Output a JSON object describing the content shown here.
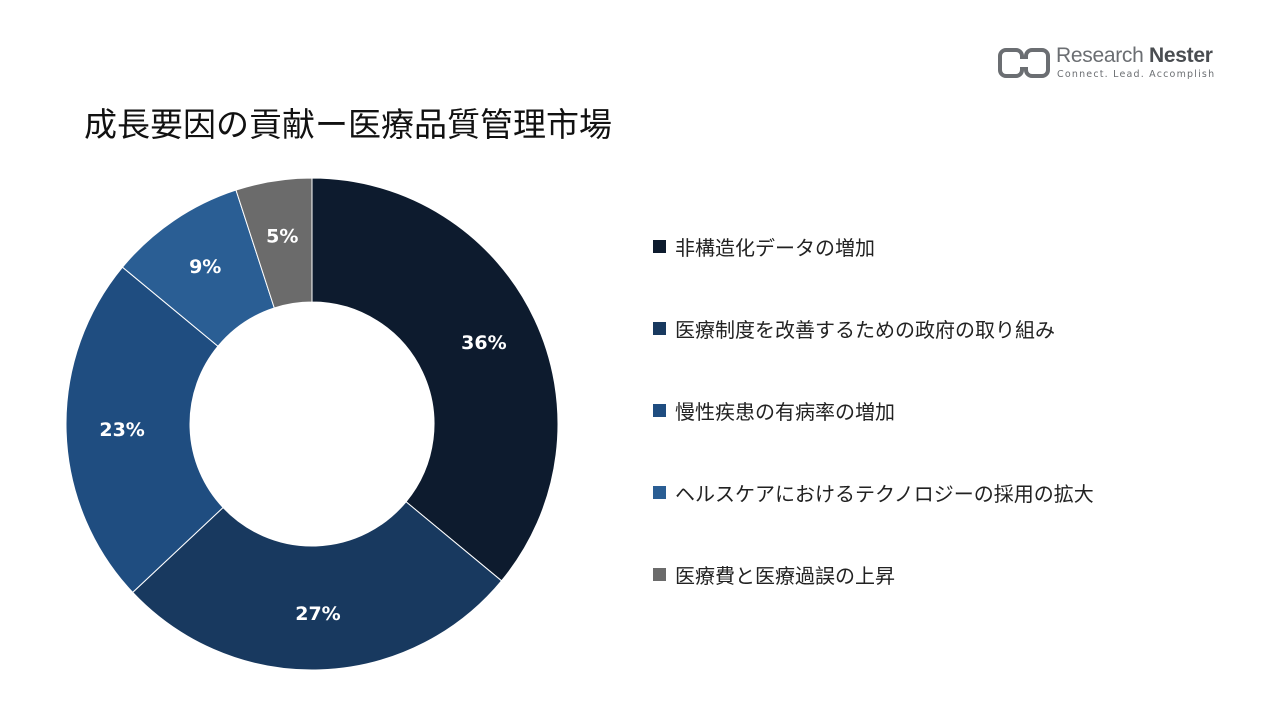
{
  "title": "成長要因の貢献ー医療品質管理市場",
  "logo": {
    "name_part1": "Research",
    "name_part2": "Nester",
    "tagline": "Connect. Lead. Accomplish",
    "icon": "research-nester-logo-icon"
  },
  "chart_data": {
    "type": "pie",
    "subtype": "donut",
    "categories": [
      "非構造化データの増加",
      "医療制度を改善するための政府の取り組み",
      "慢性疾患の有病率の増加",
      "ヘルスケアにおけるテクノロジーの採用の拡大",
      "医療費と医療過誤の上昇"
    ],
    "values": [
      36,
      27,
      23,
      9,
      5
    ],
    "labels": [
      "36%",
      "27%",
      "23%",
      "9%",
      "5%"
    ],
    "colors": [
      "#0d1b2e",
      "#18395f",
      "#1f4d80",
      "#2a5e94",
      "#6b6b6b"
    ],
    "legend": "right"
  }
}
